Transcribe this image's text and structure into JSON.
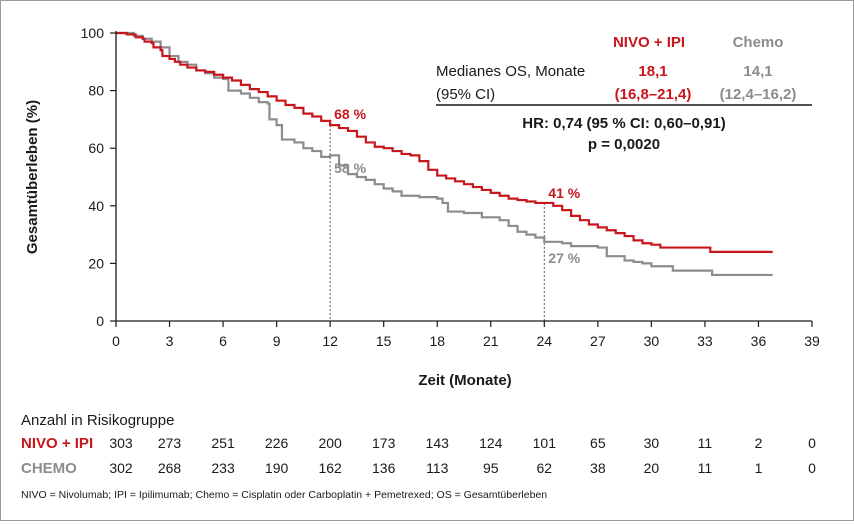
{
  "chart_data": {
    "type": "line",
    "subtype": "kaplan-meier",
    "title": "",
    "xlabel": "Zeit (Monate)",
    "ylabel": "Gesamtüberleben (%)",
    "xlim": [
      0,
      39
    ],
    "ylim": [
      0,
      100
    ],
    "x_ticks": [
      0,
      3,
      6,
      9,
      12,
      15,
      18,
      21,
      24,
      27,
      30,
      33,
      36,
      39
    ],
    "y_ticks": [
      0,
      20,
      40,
      60,
      80,
      100
    ],
    "grid": false,
    "series": [
      {
        "name": "NIVO + IPI",
        "color": "#c8161d",
        "points": [
          [
            0,
            100
          ],
          [
            0.3,
            100
          ],
          [
            0.6,
            99.5
          ],
          [
            1.0,
            99.5
          ],
          [
            1.1,
            98.5
          ],
          [
            1.5,
            98
          ],
          [
            1.6,
            97
          ],
          [
            2.0,
            96.5
          ],
          [
            2.1,
            95
          ],
          [
            2.5,
            94
          ],
          [
            2.6,
            92
          ],
          [
            3.0,
            91
          ],
          [
            3.3,
            90
          ],
          [
            3.6,
            89
          ],
          [
            4.0,
            88
          ],
          [
            4.5,
            87
          ],
          [
            5.0,
            86.5
          ],
          [
            5.5,
            85.5
          ],
          [
            6.0,
            84.5
          ],
          [
            6.5,
            83.5
          ],
          [
            7.0,
            82
          ],
          [
            7.5,
            80.5
          ],
          [
            8.0,
            79.5
          ],
          [
            8.5,
            78
          ],
          [
            9.0,
            76.5
          ],
          [
            9.5,
            75
          ],
          [
            10.0,
            74
          ],
          [
            10.5,
            72
          ],
          [
            11.0,
            71
          ],
          [
            11.5,
            69.5
          ],
          [
            12.0,
            68
          ],
          [
            12.5,
            67
          ],
          [
            13.0,
            66
          ],
          [
            13.5,
            64
          ],
          [
            14.0,
            62
          ],
          [
            14.5,
            60.5
          ],
          [
            15.0,
            60
          ],
          [
            15.5,
            59
          ],
          [
            16.0,
            58
          ],
          [
            16.5,
            57.5
          ],
          [
            17.0,
            55.5
          ],
          [
            17.5,
            52.5
          ],
          [
            18.0,
            50.5
          ],
          [
            18.5,
            49.5
          ],
          [
            19.0,
            48.5
          ],
          [
            19.5,
            47.5
          ],
          [
            20.0,
            46.5
          ],
          [
            20.5,
            45.5
          ],
          [
            21.0,
            44.5
          ],
          [
            21.5,
            43.5
          ],
          [
            22.0,
            42.5
          ],
          [
            22.5,
            42
          ],
          [
            23.0,
            41.5
          ],
          [
            23.5,
            41
          ],
          [
            24.0,
            41
          ],
          [
            24.5,
            40
          ],
          [
            25.0,
            38.5
          ],
          [
            25.5,
            36.5
          ],
          [
            26.0,
            35
          ],
          [
            26.5,
            33.5
          ],
          [
            27.0,
            32.5
          ],
          [
            27.5,
            31.5
          ],
          [
            28.0,
            30.5
          ],
          [
            28.5,
            29.5
          ],
          [
            29.0,
            28
          ],
          [
            29.5,
            27
          ],
          [
            30.0,
            26.5
          ],
          [
            30.5,
            25.5
          ],
          [
            33.2,
            25.5
          ],
          [
            33.3,
            24
          ],
          [
            36.8,
            24
          ]
        ]
      },
      {
        "name": "Chemo",
        "color": "#8c8c8c",
        "points": [
          [
            0,
            100
          ],
          [
            0.5,
            100
          ],
          [
            1.0,
            99
          ],
          [
            1.5,
            98
          ],
          [
            2.0,
            97
          ],
          [
            2.5,
            95
          ],
          [
            3.0,
            92
          ],
          [
            3.5,
            90
          ],
          [
            4.0,
            89
          ],
          [
            4.5,
            87
          ],
          [
            5.0,
            86
          ],
          [
            5.5,
            84.5
          ],
          [
            6.0,
            84
          ],
          [
            6.3,
            80
          ],
          [
            7.0,
            79
          ],
          [
            7.5,
            77.5
          ],
          [
            8.0,
            76
          ],
          [
            8.5,
            75.5
          ],
          [
            8.6,
            70
          ],
          [
            9.0,
            68
          ],
          [
            9.3,
            63
          ],
          [
            10.0,
            62
          ],
          [
            10.5,
            60
          ],
          [
            11.0,
            59
          ],
          [
            11.5,
            57
          ],
          [
            12.0,
            57.5
          ],
          [
            12.5,
            54
          ],
          [
            13.0,
            51
          ],
          [
            13.5,
            50
          ],
          [
            14.0,
            49
          ],
          [
            14.5,
            47.5
          ],
          [
            15.0,
            46
          ],
          [
            15.5,
            45
          ],
          [
            16.0,
            43.5
          ],
          [
            17.0,
            43
          ],
          [
            18.0,
            42.5
          ],
          [
            18.3,
            41
          ],
          [
            18.6,
            38
          ],
          [
            19.5,
            37.5
          ],
          [
            20.5,
            36
          ],
          [
            21.5,
            35
          ],
          [
            22.0,
            33
          ],
          [
            22.5,
            31
          ],
          [
            23.0,
            30
          ],
          [
            23.5,
            29
          ],
          [
            24.0,
            27.5
          ],
          [
            25.0,
            27
          ],
          [
            25.5,
            26
          ],
          [
            27.0,
            25.5
          ],
          [
            27.5,
            22.5
          ],
          [
            28.5,
            21
          ],
          [
            29.0,
            20.5
          ],
          [
            29.5,
            20
          ],
          [
            30.0,
            19
          ],
          [
            31.0,
            19
          ],
          [
            31.2,
            17.5
          ],
          [
            33.2,
            17.5
          ],
          [
            33.4,
            16
          ],
          [
            36.8,
            16
          ]
        ]
      }
    ],
    "reference_lines": [
      {
        "x": 12,
        "y_values": [
          68,
          58
        ]
      },
      {
        "x": 24,
        "y_values": [
          41,
          27
        ]
      }
    ],
    "annotations": [
      {
        "text": "68 %",
        "series": "NIVO + IPI",
        "x": 12,
        "y": 68
      },
      {
        "text": "58 %",
        "series": "Chemo",
        "x": 12,
        "y": 58
      },
      {
        "text": "41 %",
        "series": "NIVO + IPI",
        "x": 24,
        "y": 41
      },
      {
        "text": "27 %",
        "series": "Chemo",
        "x": 24,
        "y": 27
      }
    ],
    "summary_table": {
      "headers": [
        "NIVO + IPI",
        "Chemo"
      ],
      "row1_label": "Medianes OS, Monate",
      "row1_values": [
        "18,1",
        "14,1"
      ],
      "row2_label": "(95% CI)",
      "row2_values": [
        "(16,8–21,4)",
        "(12,4–16,2)"
      ],
      "hr_text": "HR: 0,74 (95 % CI: 0,60–0,91)",
      "p_text": "p = 0,0020"
    },
    "risk_table": {
      "title": "Anzahl in Risikogruppe",
      "time_points": [
        0,
        3,
        6,
        9,
        12,
        15,
        18,
        21,
        24,
        27,
        30,
        33,
        36,
        39
      ],
      "rows": [
        {
          "label": "NIVO + IPI",
          "color": "#c8161d",
          "values": [
            303,
            273,
            251,
            226,
            200,
            173,
            143,
            124,
            101,
            65,
            30,
            11,
            2,
            0
          ]
        },
        {
          "label": "CHEMO",
          "color": "#8c8c8c",
          "values": [
            302,
            268,
            233,
            190,
            162,
            136,
            113,
            95,
            62,
            38,
            20,
            11,
            1,
            0
          ]
        }
      ]
    },
    "footnote": "NIVO = Nivolumab; IPI = Ipilimumab; Chemo = Cisplatin oder Carboplatin + Pemetrexed; OS = Gesamtüberleben"
  }
}
